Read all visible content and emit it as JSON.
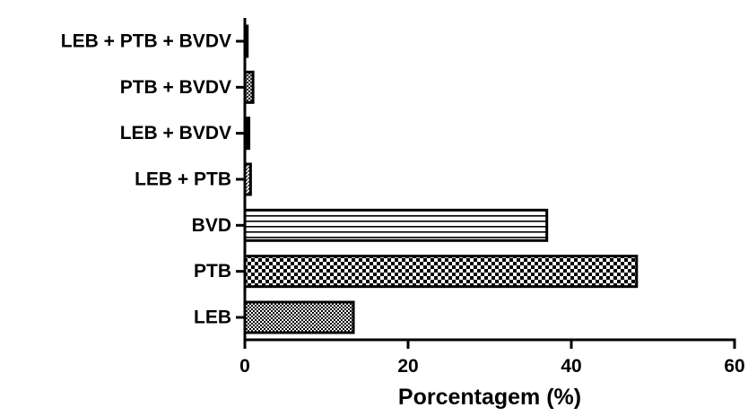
{
  "chart_data": {
    "type": "bar",
    "orientation": "horizontal",
    "title": "",
    "xlabel": "Porcentagem (%)",
    "ylabel": "",
    "categories": [
      "LEB",
      "PTB",
      "BVD",
      "LEB + PTB",
      "LEB + BVDV",
      "PTB + BVDV",
      "LEB + PTB + BVDV"
    ],
    "values": [
      13.3,
      48.0,
      37.0,
      0.7,
      0.5,
      1.0,
      0.3
    ],
    "xlim": [
      0,
      60
    ],
    "xticks": [
      0,
      20,
      40,
      60
    ],
    "grid": false,
    "legend": "none",
    "fill_patterns": [
      "fine-checker",
      "coarse-checker",
      "horizontal-lines",
      "diagonal-hatch",
      "solid",
      "crosshatch",
      "solid"
    ],
    "colors": {
      "ink": "#000000",
      "background": "#ffffff"
    }
  }
}
